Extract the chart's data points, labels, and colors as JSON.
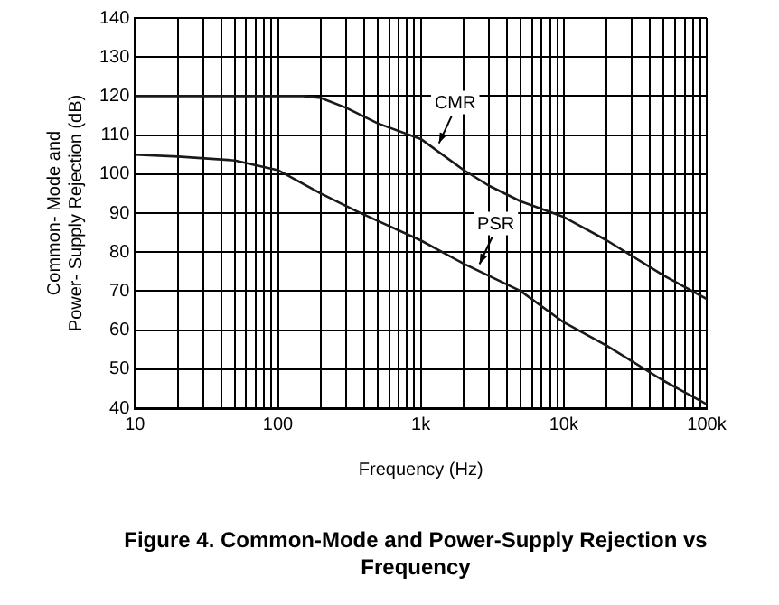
{
  "chart_data": {
    "type": "line",
    "title": "Figure 4. Common-Mode and Power-Supply Rejection vs Frequency",
    "xlabel": "Frequency (Hz)",
    "ylabel": "Common- Mode and\nPower- Supply Rejection (dB)",
    "log": "x",
    "grid": true,
    "legend": false,
    "marker": "none",
    "line_style": "solid",
    "xlim": [
      10,
      100000
    ],
    "ylim": [
      40,
      140
    ],
    "xticks": [
      10,
      {
        "value": 20,
        "label": null
      },
      {
        "value": 30,
        "label": null
      },
      {
        "value": 40,
        "label": null
      },
      {
        "value": 50,
        "label": null
      },
      {
        "value": 60,
        "label": null
      },
      {
        "value": 70,
        "label": null
      },
      {
        "value": 80,
        "label": null
      },
      {
        "value": 90,
        "label": null
      },
      100,
      {
        "value": 200,
        "label": null
      },
      {
        "value": 300,
        "label": null
      },
      {
        "value": 400,
        "label": null
      },
      {
        "value": 500,
        "label": null
      },
      {
        "value": 600,
        "label": null
      },
      {
        "value": 700,
        "label": null
      },
      {
        "value": 800,
        "label": null
      },
      {
        "value": 900,
        "label": null
      },
      {
        "value": 1000,
        "label": "1k"
      },
      {
        "value": 2000,
        "label": null
      },
      {
        "value": 3000,
        "label": null
      },
      {
        "value": 4000,
        "label": null
      },
      {
        "value": 5000,
        "label": null
      },
      {
        "value": 6000,
        "label": null
      },
      {
        "value": 7000,
        "label": null
      },
      {
        "value": 8000,
        "label": null
      },
      {
        "value": 9000,
        "label": null
      },
      {
        "value": 10000,
        "label": "10k"
      },
      {
        "value": 20000,
        "label": null
      },
      {
        "value": 30000,
        "label": null
      },
      {
        "value": 40000,
        "label": null
      },
      {
        "value": 50000,
        "label": null
      },
      {
        "value": 60000,
        "label": null
      },
      {
        "value": 70000,
        "label": null
      },
      {
        "value": 80000,
        "label": null
      },
      {
        "value": 90000,
        "label": null
      },
      {
        "value": 100000,
        "label": "100k"
      }
    ],
    "yticks": [
      40,
      50,
      60,
      70,
      80,
      90,
      100,
      110,
      120,
      130,
      140
    ],
    "series": [
      {
        "color": "#1a1a1a",
        "x": [
          10,
          100,
          150,
          200,
          300,
          500,
          1000,
          2000,
          3000,
          5000,
          10000,
          20000,
          50000,
          100000
        ],
        "values": [
          120,
          120,
          120,
          119.5,
          117,
          113,
          109,
          101,
          97,
          93,
          89,
          83,
          74,
          68
        ]
      },
      {
        "color": "#1a1a1a",
        "x": [
          10,
          20,
          50,
          100,
          200,
          355,
          500,
          1000,
          2000,
          5000,
          10000,
          20000,
          50000,
          100000
        ],
        "values": [
          105,
          104.5,
          103.5,
          101,
          95,
          90.5,
          88,
          83,
          77,
          70,
          62,
          56,
          47,
          41
        ]
      }
    ],
    "annotations": [
      {
        "text": "CMR",
        "x": 1300,
        "y": 107
      },
      {
        "text": "PSR",
        "x": 2500,
        "y": 76
      }
    ]
  }
}
